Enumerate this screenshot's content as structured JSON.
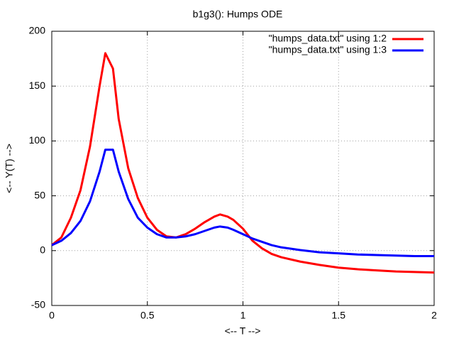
{
  "chart_data": {
    "type": "line",
    "title": "b1g3(): Humps ODE",
    "xlabel": "<-- T -->",
    "ylabel": "<-- Y(T) -->",
    "x": [
      0,
      0.05,
      0.1,
      0.15,
      0.2,
      0.25,
      0.28,
      0.32,
      0.35,
      0.4,
      0.45,
      0.5,
      0.55,
      0.6,
      0.65,
      0.7,
      0.75,
      0.8,
      0.85,
      0.88,
      0.92,
      0.95,
      1.0,
      1.05,
      1.1,
      1.15,
      1.2,
      1.3,
      1.4,
      1.5,
      1.6,
      1.7,
      1.8,
      1.9,
      2.0
    ],
    "series": [
      {
        "name": "\"humps_data.txt\" using 1:2",
        "color": "#ff0000",
        "values": [
          5,
          12,
          30,
          55,
          95,
          150,
          180,
          166,
          120,
          75,
          48,
          30,
          19,
          13,
          12,
          15,
          20,
          26,
          31,
          33,
          31,
          28,
          20,
          9,
          2,
          -3,
          -6,
          -10,
          -13,
          -15.5,
          -17,
          -18,
          -19,
          -19.5,
          -20
        ]
      },
      {
        "name": "\"humps_data.txt\" using 1:3",
        "color": "#0000ff",
        "values": [
          5,
          9,
          16,
          27,
          45,
          72,
          92,
          92,
          72,
          47,
          30,
          21,
          15,
          12,
          12,
          13,
          15,
          18,
          21,
          22,
          21,
          19,
          15,
          11,
          8,
          5,
          3,
          0.5,
          -1.5,
          -2.5,
          -3.5,
          -4,
          -4.5,
          -5,
          -5
        ]
      }
    ],
    "xlim": [
      0,
      2
    ],
    "xticks": [
      0,
      0.5,
      1,
      1.5,
      2
    ],
    "ylim": [
      -50,
      200
    ],
    "yticks": [
      -50,
      0,
      50,
      100,
      150,
      200
    ],
    "grid": true,
    "legend": "top-right"
  }
}
